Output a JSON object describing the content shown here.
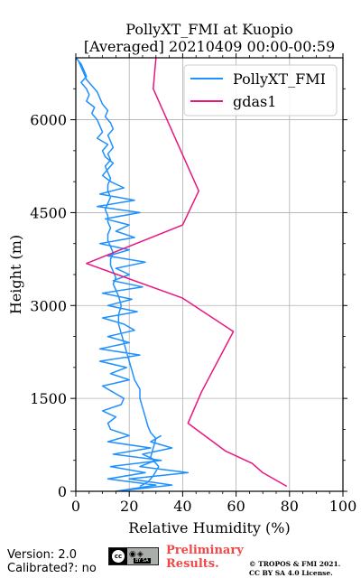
{
  "chart_data": {
    "type": "line",
    "title": "PollyXT_FMI at Kuopio",
    "subtitle": "[Averaged] 20210409 00:00-00:59",
    "xlabel": "Relative Humidity (%)",
    "ylabel": "Height (m)",
    "xlim": [
      0,
      100
    ],
    "ylim": [
      0,
      7000
    ],
    "xticks": [
      "0",
      "20",
      "40",
      "60",
      "80",
      "100"
    ],
    "yticks": [
      "0",
      "1500",
      "3000",
      "4500",
      "6000"
    ],
    "grid": true,
    "legend_position": "top-right",
    "series": [
      {
        "name": "PollyXT_FMI",
        "color": "#1e90ff",
        "x": [
          24,
          27,
          29,
          31,
          28,
          29,
          30,
          28,
          27,
          26,
          25,
          24,
          24,
          22,
          21,
          20,
          19,
          18,
          17,
          16,
          16,
          17,
          16,
          15,
          14,
          15,
          14,
          13,
          13,
          14,
          13,
          12,
          12,
          13,
          12,
          12,
          11,
          12,
          13,
          12,
          12,
          13,
          12,
          11,
          13,
          12,
          14,
          13,
          12,
          14,
          13,
          11,
          12,
          10,
          9,
          8,
          6,
          4,
          3,
          2,
          1,
          0,
          2,
          3,
          4,
          2,
          4,
          5,
          4,
          7,
          6,
          8,
          9,
          10,
          8,
          12,
          10,
          11,
          14,
          12,
          10,
          13,
          18,
          9,
          22,
          8,
          24,
          11,
          20,
          15,
          22,
          9,
          20,
          12,
          26,
          15,
          20,
          14,
          25,
          10,
          21,
          12,
          23,
          10,
          18,
          22,
          12,
          20,
          9,
          24,
          9,
          19,
          13,
          20,
          10,
          14,
          18,
          17,
          10,
          15,
          12,
          13,
          20,
          12,
          28,
          14,
          32,
          13,
          26,
          12,
          30,
          15,
          36,
          20,
          42,
          24,
          30,
          25,
          36,
          28,
          32
        ],
        "y": [
          80,
          150,
          250,
          400,
          550,
          700,
          850,
          950,
          1050,
          1200,
          1350,
          1500,
          1650,
          1800,
          1950,
          2100,
          2250,
          2400,
          2550,
          2700,
          2850,
          3000,
          3150,
          3250,
          3350,
          3450,
          3550,
          3650,
          3750,
          3850,
          3950,
          4050,
          4150,
          4250,
          4350,
          4450,
          4550,
          4650,
          4750,
          4850,
          4950,
          5050,
          5150,
          5250,
          5350,
          5450,
          5550,
          5650,
          5750,
          5850,
          5950,
          6050,
          6150,
          6250,
          6350,
          6450,
          6550,
          6650,
          6750,
          6850,
          6950,
          7000,
          6900,
          6800,
          6700,
          6600,
          6500,
          6400,
          6300,
          6200,
          6100,
          6000,
          5900,
          5800,
          5700,
          5600,
          5500,
          5400,
          5300,
          5200,
          5100,
          5000,
          4900,
          4800,
          4700,
          4600,
          4500,
          4400,
          4300,
          4200,
          4100,
          4000,
          3900,
          3800,
          3700,
          3600,
          3500,
          3400,
          3300,
          3200,
          3100,
          3000,
          2900,
          2800,
          2700,
          2600,
          2500,
          2400,
          2300,
          2200,
          2100,
          2000,
          1900,
          1800,
          1700,
          1600,
          1500,
          1400,
          1300,
          1200,
          1100,
          1000,
          900,
          800,
          700,
          600,
          500,
          400,
          300,
          200,
          100,
          0,
          100,
          200,
          300,
          400,
          500,
          600,
          700,
          800,
          900
        ]
      },
      {
        "name": "gdas1",
        "color": "#e8167f",
        "x": [
          79,
          70,
          66,
          56,
          42,
          47,
          59,
          40,
          4,
          40,
          46,
          29,
          30
        ],
        "y": [
          80,
          300,
          450,
          650,
          1100,
          1600,
          2580,
          3120,
          3680,
          4300,
          4850,
          6500,
          7000
        ]
      }
    ]
  },
  "footer": {
    "version": "Version: 2.0",
    "calibrated": "Calibrated?: no",
    "preliminary_line1": "Preliminary",
    "preliminary_line2": "Results.",
    "copyright": "© TROPOS & FMI 2021.",
    "license": "CC BY SA 4.0 License.",
    "cc_logo_text": "cc",
    "cc_badge_text": "BY  SA"
  }
}
